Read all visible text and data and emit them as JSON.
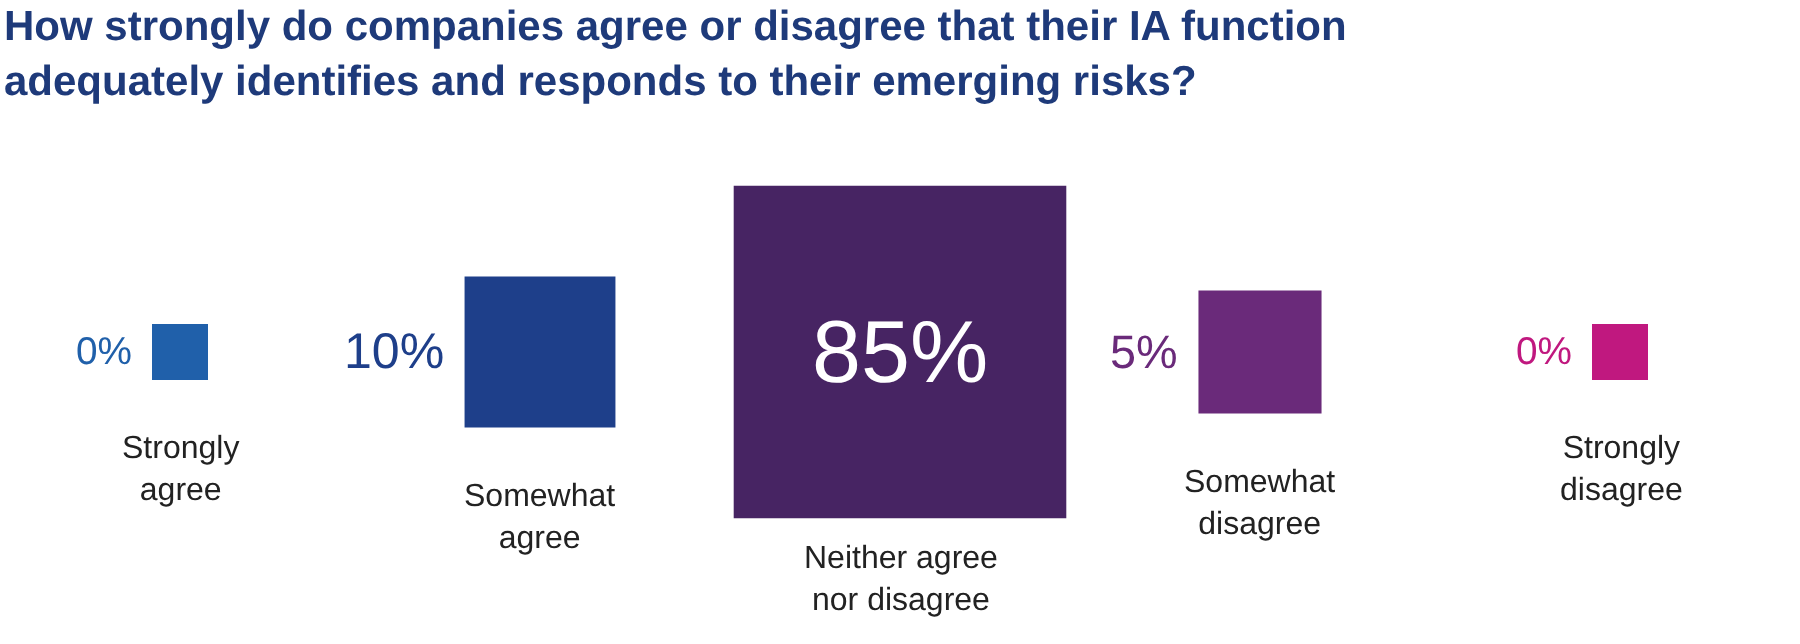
{
  "chart_data": {
    "type": "other",
    "title": "How strongly do companies agree or disagree that their IA function adequately identifies and responds to their emerging risks?",
    "categories": [
      "Strongly agree",
      "Somewhat agree",
      "Neither agree nor disagree",
      "Somewhat disagree",
      "Strongly disagree"
    ],
    "values": [
      0,
      10,
      85,
      5,
      0
    ],
    "value_labels": [
      "0%",
      "10%",
      "85%",
      "5%",
      "0%"
    ],
    "colors": [
      "#2060aa",
      "#1e3f8a",
      "#472463",
      "#6a2a7a",
      "#c0187f"
    ]
  }
}
